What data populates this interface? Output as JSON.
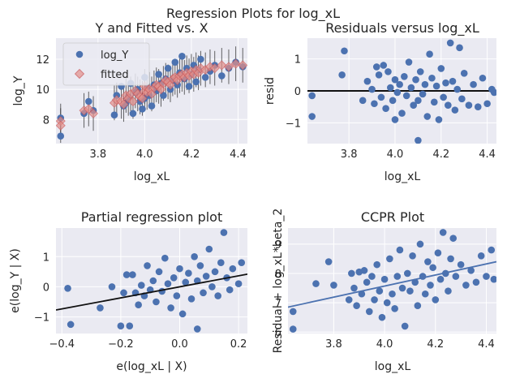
{
  "suptitle": "Regression Plots for log_xL",
  "colors": {
    "point": "#4c72b0",
    "fitted": "#dd8452",
    "fitted_fill": "#e28e8a",
    "line_black": "#111111",
    "line_blue": "#4c72b0",
    "errbar": "#333333",
    "panel_bg": "#eaeaf2"
  },
  "chart_data": [
    {
      "id": "fit",
      "type": "scatter",
      "title": "Y and Fitted vs. X",
      "xlabel": "log_xL",
      "ylabel": "log_Y",
      "xlim": [
        3.62,
        4.44
      ],
      "ylim": [
        6.4,
        13.4
      ],
      "xticks": [
        3.8,
        4.0,
        4.2,
        4.4
      ],
      "xtick_labels": [
        "3.8",
        "4.0",
        "4.2",
        "4.4"
      ],
      "yticks": [
        8,
        10,
        12
      ],
      "ytick_labels": [
        "8",
        "10",
        "12"
      ],
      "legend": {
        "position": "upper-left",
        "entries": [
          "log_Y",
          "fitted"
        ]
      },
      "series": [
        {
          "name": "log_Y",
          "marker": "circle",
          "points": [
            [
              3.64,
              8.1
            ],
            [
              3.64,
              6.9
            ],
            [
              3.74,
              8.4
            ],
            [
              3.76,
              9.2
            ],
            [
              3.78,
              8.6
            ],
            [
              3.87,
              8.3
            ],
            [
              3.88,
              9.6
            ],
            [
              3.9,
              10.2
            ],
            [
              3.91,
              8.9
            ],
            [
              3.92,
              9.1
            ],
            [
              3.93,
              9.5
            ],
            [
              3.94,
              10.4
            ],
            [
              3.95,
              8.4
            ],
            [
              3.96,
              9.8
            ],
            [
              3.97,
              10.0
            ],
            [
              3.98,
              9.2
            ],
            [
              3.99,
              8.7
            ],
            [
              4.0,
              9.4
            ],
            [
              4.0,
              10.8
            ],
            [
              4.01,
              10.1
            ],
            [
              4.02,
              9.6
            ],
            [
              4.03,
              8.9
            ],
            [
              4.04,
              10.3
            ],
            [
              4.05,
              9.9
            ],
            [
              4.06,
              11.0
            ],
            [
              4.07,
              10.4
            ],
            [
              4.08,
              9.6
            ],
            [
              4.09,
              10.7
            ],
            [
              4.1,
              11.4
            ],
            [
              4.11,
              10.0
            ],
            [
              4.12,
              10.6
            ],
            [
              4.13,
              11.8
            ],
            [
              4.14,
              10.3
            ],
            [
              4.15,
              11.1
            ],
            [
              4.16,
              12.2
            ],
            [
              4.17,
              10.7
            ],
            [
              4.18,
              11.4
            ],
            [
              4.19,
              10.2
            ],
            [
              4.2,
              11.0
            ],
            [
              4.21,
              11.6
            ],
            [
              4.22,
              10.5
            ],
            [
              4.23,
              11.3
            ],
            [
              4.24,
              12.0
            ],
            [
              4.26,
              10.8
            ],
            [
              4.28,
              11.2
            ],
            [
              4.3,
              11.6
            ],
            [
              4.33,
              10.9
            ],
            [
              4.36,
              11.4
            ],
            [
              4.39,
              11.8
            ],
            [
              4.42,
              11.5
            ]
          ]
        },
        {
          "name": "fitted",
          "marker": "diamond",
          "points": [
            [
              3.64,
              7.9
            ],
            [
              3.64,
              7.6
            ],
            [
              3.74,
              8.6
            ],
            [
              3.76,
              8.7
            ],
            [
              3.78,
              8.4
            ],
            [
              3.87,
              9.1
            ],
            [
              3.88,
              9.3
            ],
            [
              3.9,
              9.2
            ],
            [
              3.91,
              9.0
            ],
            [
              3.92,
              9.6
            ],
            [
              3.93,
              9.4
            ],
            [
              3.94,
              9.7
            ],
            [
              3.95,
              9.2
            ],
            [
              3.96,
              9.9
            ],
            [
              3.97,
              9.7
            ],
            [
              3.98,
              9.5
            ],
            [
              3.99,
              9.4
            ],
            [
              4.0,
              9.9
            ],
            [
              4.0,
              10.2
            ],
            [
              4.01,
              9.8
            ],
            [
              4.02,
              10.0
            ],
            [
              4.03,
              9.7
            ],
            [
              4.04,
              10.1
            ],
            [
              4.05,
              10.3
            ],
            [
              4.06,
              10.2
            ],
            [
              4.07,
              10.0
            ],
            [
              4.08,
              10.4
            ],
            [
              4.09,
              10.6
            ],
            [
              4.1,
              10.5
            ],
            [
              4.11,
              10.3
            ],
            [
              4.12,
              10.7
            ],
            [
              4.13,
              10.8
            ],
            [
              4.14,
              10.6
            ],
            [
              4.15,
              10.9
            ],
            [
              4.16,
              11.0
            ],
            [
              4.17,
              10.8
            ],
            [
              4.18,
              11.1
            ],
            [
              4.19,
              10.9
            ],
            [
              4.2,
              11.2
            ],
            [
              4.21,
              11.0
            ],
            [
              4.22,
              11.3
            ],
            [
              4.23,
              11.1
            ],
            [
              4.24,
              11.4
            ],
            [
              4.26,
              11.3
            ],
            [
              4.28,
              11.5
            ],
            [
              4.3,
              11.4
            ],
            [
              4.33,
              11.6
            ],
            [
              4.36,
              11.5
            ],
            [
              4.39,
              11.7
            ],
            [
              4.42,
              11.6
            ]
          ]
        }
      ]
    },
    {
      "id": "resid",
      "type": "scatter",
      "title": "Residuals versus log_xL",
      "xlabel": "log_xL",
      "ylabel": "resid",
      "xlim": [
        3.62,
        4.44
      ],
      "ylim": [
        -1.65,
        1.65
      ],
      "xticks": [
        3.8,
        4.0,
        4.2,
        4.4
      ],
      "xtick_labels": [
        "3.8",
        "4.0",
        "4.2",
        "4.4"
      ],
      "yticks": [
        -1,
        0,
        1
      ],
      "ytick_labels": [
        "−1",
        "0",
        "1"
      ],
      "hline": 0,
      "points": [
        [
          3.64,
          -0.15
        ],
        [
          3.64,
          -0.8
        ],
        [
          3.77,
          0.5
        ],
        [
          3.78,
          1.25
        ],
        [
          3.86,
          -0.3
        ],
        [
          3.88,
          0.3
        ],
        [
          3.9,
          0.05
        ],
        [
          3.91,
          -0.4
        ],
        [
          3.92,
          0.75
        ],
        [
          3.93,
          0.5
        ],
        [
          3.94,
          -0.2
        ],
        [
          3.95,
          0.8
        ],
        [
          3.96,
          -0.55
        ],
        [
          3.97,
          0.6
        ],
        [
          3.98,
          0.1
        ],
        [
          3.99,
          -0.3
        ],
        [
          4.0,
          -0.9
        ],
        [
          4.0,
          0.35
        ],
        [
          4.01,
          -0.05
        ],
        [
          4.02,
          0.2
        ],
        [
          4.03,
          -0.7
        ],
        [
          4.04,
          0.45
        ],
        [
          4.05,
          -0.15
        ],
        [
          4.06,
          0.9
        ],
        [
          4.07,
          0.1
        ],
        [
          4.08,
          -0.45
        ],
        [
          4.09,
          0.35
        ],
        [
          4.1,
          -0.3
        ],
        [
          4.1,
          -1.55
        ],
        [
          4.11,
          0.6
        ],
        [
          4.12,
          -0.1
        ],
        [
          4.13,
          0.2
        ],
        [
          4.14,
          -0.8
        ],
        [
          4.15,
          1.15
        ],
        [
          4.16,
          0.4
        ],
        [
          4.17,
          -0.35
        ],
        [
          4.18,
          0.15
        ],
        [
          4.19,
          -0.9
        ],
        [
          4.2,
          0.7
        ],
        [
          4.21,
          -0.2
        ],
        [
          4.22,
          0.25
        ],
        [
          4.23,
          -0.45
        ],
        [
          4.24,
          1.5
        ],
        [
          4.25,
          0.3
        ],
        [
          4.26,
          -0.6
        ],
        [
          4.27,
          0.05
        ],
        [
          4.28,
          1.35
        ],
        [
          4.29,
          -0.25
        ],
        [
          4.3,
          0.55
        ],
        [
          4.32,
          -0.45
        ],
        [
          4.34,
          0.2
        ],
        [
          4.36,
          -0.5
        ],
        [
          4.38,
          0.4
        ],
        [
          4.4,
          -0.4
        ],
        [
          4.42,
          0.05
        ],
        [
          4.43,
          -0.05
        ]
      ]
    },
    {
      "id": "partreg",
      "type": "scatter",
      "title": "Partial regression plot",
      "xlabel": "e(log_xL | X)",
      "ylabel": "e(log_Y | X)",
      "xlim": [
        -0.42,
        0.23
      ],
      "ylim": [
        -1.55,
        1.95
      ],
      "xticks": [
        -0.4,
        -0.2,
        0.0,
        0.2
      ],
      "xtick_labels": [
        "−0.4",
        "−0.2",
        "0.0",
        "0.2"
      ],
      "yticks": [
        -1,
        0,
        1
      ],
      "ytick_labels": [
        "−1",
        "0",
        "1"
      ],
      "fit_line": [
        [
          -0.42,
          -0.77
        ],
        [
          0.23,
          0.42
        ]
      ],
      "points": [
        [
          -0.38,
          -0.05
        ],
        [
          -0.37,
          -1.25
        ],
        [
          -0.27,
          -0.7
        ],
        [
          -0.23,
          0.0
        ],
        [
          -0.2,
          -1.3
        ],
        [
          -0.19,
          -0.2
        ],
        [
          -0.18,
          0.4
        ],
        [
          -0.17,
          -1.3
        ],
        [
          -0.16,
          0.4
        ],
        [
          -0.15,
          -0.2
        ],
        [
          -0.14,
          -0.6
        ],
        [
          -0.13,
          0.05
        ],
        [
          -0.12,
          -0.3
        ],
        [
          -0.11,
          0.7
        ],
        [
          -0.1,
          -0.1
        ],
        [
          -0.09,
          0.2
        ],
        [
          -0.08,
          -0.5
        ],
        [
          -0.07,
          0.5
        ],
        [
          -0.06,
          -0.15
        ],
        [
          -0.05,
          0.95
        ],
        [
          -0.04,
          0.1
        ],
        [
          -0.03,
          -0.7
        ],
        [
          -0.02,
          0.3
        ],
        [
          -0.01,
          -0.3
        ],
        [
          0.0,
          0.6
        ],
        [
          0.01,
          -0.9
        ],
        [
          0.02,
          0.15
        ],
        [
          0.03,
          0.45
        ],
        [
          0.04,
          -0.4
        ],
        [
          0.05,
          1.0
        ],
        [
          0.06,
          0.2
        ],
        [
          0.06,
          -1.4
        ],
        [
          0.07,
          0.7
        ],
        [
          0.08,
          -0.2
        ],
        [
          0.09,
          0.35
        ],
        [
          0.1,
          1.25
        ],
        [
          0.11,
          0.0
        ],
        [
          0.12,
          0.5
        ],
        [
          0.13,
          -0.3
        ],
        [
          0.14,
          0.8
        ],
        [
          0.15,
          1.8
        ],
        [
          0.16,
          0.3
        ],
        [
          0.17,
          -0.1
        ],
        [
          0.18,
          0.6
        ],
        [
          0.2,
          0.1
        ],
        [
          0.21,
          0.8
        ]
      ]
    },
    {
      "id": "ccpr",
      "type": "scatter",
      "title": "CCPR Plot",
      "xlabel": "log_xL",
      "ylabel": "Residual + log_xL*beta_2",
      "xlim": [
        3.62,
        4.44
      ],
      "ylim": [
        5.95,
        9.55
      ],
      "xticks": [
        3.8,
        4.0,
        4.2,
        4.4
      ],
      "xtick_labels": [
        "3.8",
        "4.0",
        "4.2",
        "4.4"
      ],
      "yticks": [
        6,
        7,
        8,
        9
      ],
      "ytick_labels": [
        "6",
        "7",
        "8",
        "9"
      ],
      "fit_line": [
        [
          3.62,
          6.85
        ],
        [
          4.44,
          8.4
        ]
      ],
      "points": [
        [
          3.64,
          6.7
        ],
        [
          3.64,
          6.1
        ],
        [
          3.73,
          7.65
        ],
        [
          3.78,
          8.4
        ],
        [
          3.8,
          7.6
        ],
        [
          3.86,
          7.1
        ],
        [
          3.87,
          8.0
        ],
        [
          3.88,
          7.5
        ],
        [
          3.89,
          6.9
        ],
        [
          3.9,
          8.05
        ],
        [
          3.91,
          7.3
        ],
        [
          3.92,
          8.1
        ],
        [
          3.93,
          7.7
        ],
        [
          3.94,
          6.7
        ],
        [
          3.95,
          7.9
        ],
        [
          3.96,
          7.1
        ],
        [
          3.97,
          8.3
        ],
        [
          3.98,
          7.4
        ],
        [
          3.99,
          6.5
        ],
        [
          4.0,
          7.8
        ],
        [
          4.01,
          7.0
        ],
        [
          4.02,
          8.5
        ],
        [
          4.03,
          7.3
        ],
        [
          4.04,
          6.8
        ],
        [
          4.05,
          7.9
        ],
        [
          4.06,
          8.8
        ],
        [
          4.07,
          7.5
        ],
        [
          4.08,
          6.2
        ],
        [
          4.09,
          8.0
        ],
        [
          4.1,
          7.4
        ],
        [
          4.11,
          8.6
        ],
        [
          4.12,
          7.7
        ],
        [
          4.13,
          6.9
        ],
        [
          4.14,
          9.0
        ],
        [
          4.15,
          7.9
        ],
        [
          4.16,
          7.3
        ],
        [
          4.17,
          8.4
        ],
        [
          4.18,
          7.6
        ],
        [
          4.19,
          8.2
        ],
        [
          4.2,
          7.1
        ],
        [
          4.21,
          8.7
        ],
        [
          4.22,
          7.8
        ],
        [
          4.23,
          9.4
        ],
        [
          4.24,
          8.0
        ],
        [
          4.25,
          7.4
        ],
        [
          4.26,
          8.5
        ],
        [
          4.27,
          9.2
        ],
        [
          4.28,
          7.9
        ],
        [
          4.3,
          8.3
        ],
        [
          4.32,
          7.6
        ],
        [
          4.34,
          8.1
        ],
        [
          4.36,
          7.7
        ],
        [
          4.38,
          8.6
        ],
        [
          4.4,
          7.9
        ],
        [
          4.42,
          8.8
        ],
        [
          4.43,
          7.8
        ]
      ]
    }
  ]
}
